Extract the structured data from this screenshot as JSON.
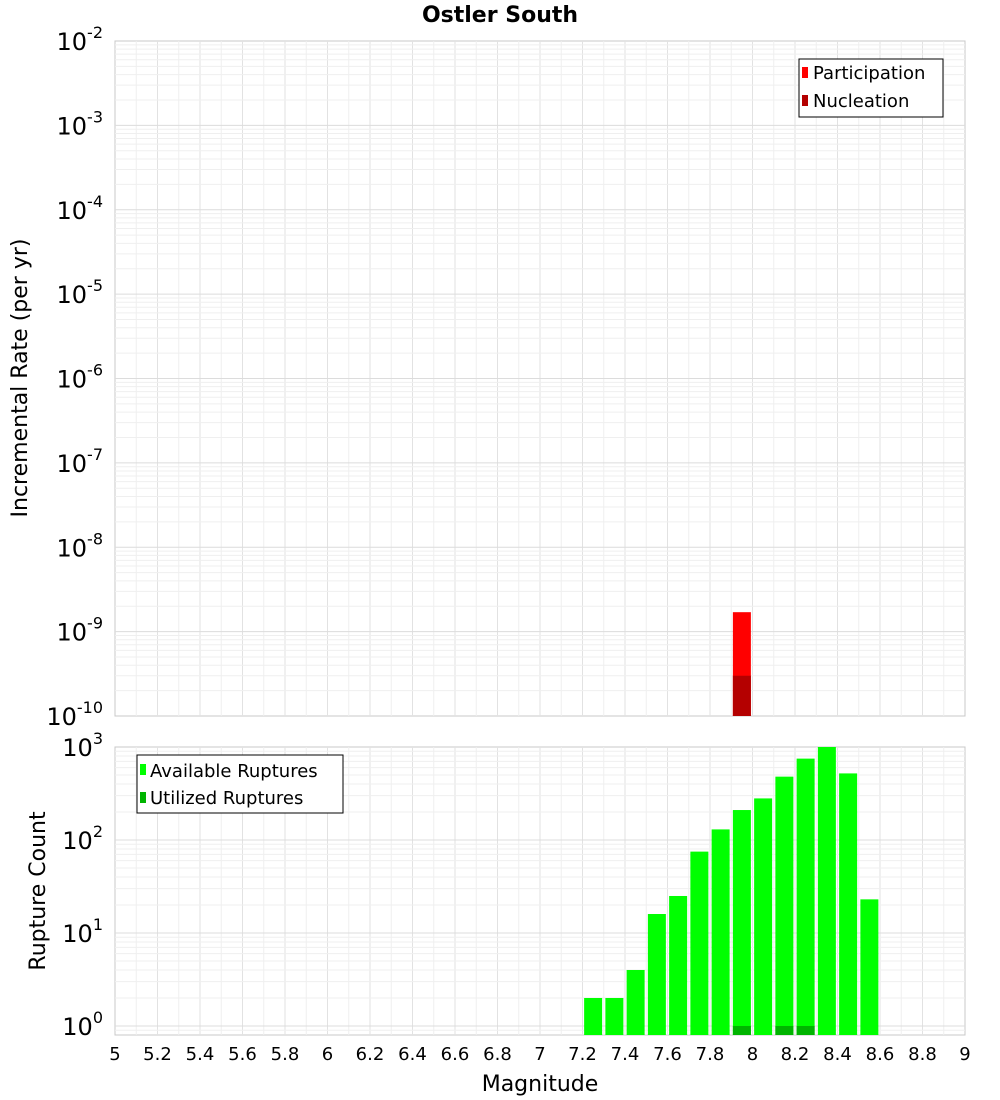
{
  "chart_data": [
    {
      "type": "bar",
      "title": "Ostler South",
      "xlabel": "",
      "ylabel": "Incremental Rate (per yr)",
      "xlim": [
        5,
        9
      ],
      "ylim": [
        1e-10,
        0.01
      ],
      "yscale": "log",
      "grid": true,
      "legend": {
        "position": "top-right",
        "entries": [
          "Participation",
          "Nucleation"
        ]
      },
      "y_tick_labels": [
        {
          "base": "10",
          "exp": "-10",
          "value": 1e-10
        },
        {
          "base": "10",
          "exp": "-9",
          "value": 1e-09
        },
        {
          "base": "10",
          "exp": "-8",
          "value": 1e-08
        },
        {
          "base": "10",
          "exp": "-7",
          "value": 1e-07
        },
        {
          "base": "10",
          "exp": "-6",
          "value": 1e-06
        },
        {
          "base": "10",
          "exp": "-5",
          "value": 1e-05
        },
        {
          "base": "10",
          "exp": "-4",
          "value": 0.0001
        },
        {
          "base": "10",
          "exp": "-3",
          "value": 0.001
        },
        {
          "base": "10",
          "exp": "-2",
          "value": 0.01
        }
      ],
      "series": [
        {
          "name": "Participation",
          "color": "#ff0000",
          "bars": [
            {
              "x": 7.95,
              "y": 1.7e-09
            }
          ]
        },
        {
          "name": "Nucleation",
          "color": "#b40000",
          "bars": [
            {
              "x": 7.95,
              "y": 3e-10
            }
          ]
        }
      ]
    },
    {
      "type": "bar",
      "title": "",
      "xlabel": "Magnitude",
      "ylabel": "Rupture Count",
      "xlim": [
        5,
        9
      ],
      "ylim": [
        0.8,
        1000
      ],
      "yscale": "log",
      "grid": true,
      "legend": {
        "position": "top-left",
        "entries": [
          "Available Ruptures",
          "Utilized Ruptures"
        ]
      },
      "x_ticks": [
        "5",
        "5.2",
        "5.4",
        "5.6",
        "5.8",
        "6",
        "6.2",
        "6.4",
        "6.6",
        "6.8",
        "7",
        "7.2",
        "7.4",
        "7.6",
        "7.8",
        "8",
        "8.2",
        "8.4",
        "8.6",
        "8.8",
        "9"
      ],
      "y_tick_labels": [
        {
          "base": "10",
          "exp": "0",
          "value": 1
        },
        {
          "base": "10",
          "exp": "1",
          "value": 10
        },
        {
          "base": "10",
          "exp": "2",
          "value": 100
        },
        {
          "base": "10",
          "exp": "3",
          "value": 1000
        }
      ],
      "series": [
        {
          "name": "Available Ruptures",
          "color": "#00ff00",
          "bars": [
            {
              "x": 7.25,
              "y": 2
            },
            {
              "x": 7.35,
              "y": 2
            },
            {
              "x": 7.45,
              "y": 4
            },
            {
              "x": 7.55,
              "y": 16
            },
            {
              "x": 7.65,
              "y": 25
            },
            {
              "x": 7.75,
              "y": 75
            },
            {
              "x": 7.85,
              "y": 130
            },
            {
              "x": 7.95,
              "y": 210
            },
            {
              "x": 8.05,
              "y": 280
            },
            {
              "x": 8.15,
              "y": 480
            },
            {
              "x": 8.25,
              "y": 750
            },
            {
              "x": 8.35,
              "y": 1000
            },
            {
              "x": 8.45,
              "y": 520
            },
            {
              "x": 8.55,
              "y": 23
            }
          ]
        },
        {
          "name": "Utilized Ruptures",
          "color": "#00b400",
          "bars": [
            {
              "x": 7.95,
              "y": 1
            },
            {
              "x": 8.15,
              "y": 1
            },
            {
              "x": 8.25,
              "y": 1
            }
          ]
        }
      ]
    }
  ]
}
